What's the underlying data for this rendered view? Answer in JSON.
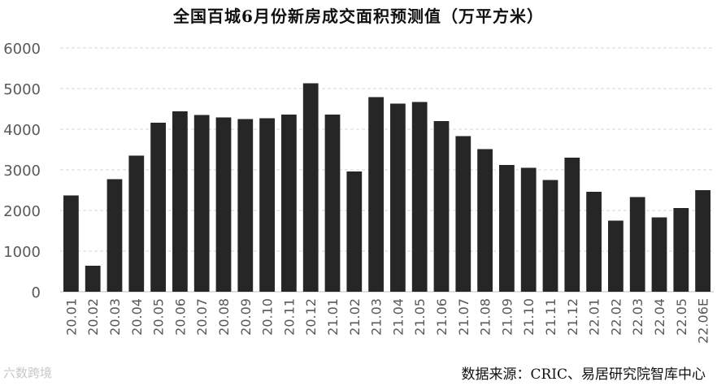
{
  "chart_data": {
    "type": "bar",
    "title": "全国百城6月份新房成交面积预测值（万平方米）",
    "categories": [
      "20.01",
      "20.02",
      "20.03",
      "20.04",
      "20.05",
      "20.06",
      "20.07",
      "20.08",
      "20.09",
      "20.10",
      "20.11",
      "20.12",
      "21.01",
      "21.02",
      "21.03",
      "21.04",
      "21.05",
      "21.06",
      "21.07",
      "21.08",
      "21.09",
      "21.10",
      "21.11",
      "21.12",
      "22.01",
      "22.02",
      "22.03",
      "22.04",
      "22.05",
      "22.06E"
    ],
    "values": [
      2370,
      640,
      2770,
      3350,
      4160,
      4440,
      4350,
      4290,
      4250,
      4270,
      4360,
      5130,
      4360,
      2960,
      4790,
      4630,
      4670,
      4200,
      3830,
      3510,
      3120,
      3050,
      2750,
      3300,
      2460,
      1750,
      2330,
      1830,
      2060,
      2500
    ],
    "ylim": [
      0,
      6000
    ],
    "yticks": [
      0,
      1000,
      2000,
      3000,
      4000,
      5000,
      6000
    ],
    "xlabel": "",
    "ylabel": "",
    "grid": true,
    "bar_color": "#262626"
  },
  "footer": {
    "source": "数据来源：CRIC、易居研究院智库中心",
    "watermark": "六数跨境"
  }
}
